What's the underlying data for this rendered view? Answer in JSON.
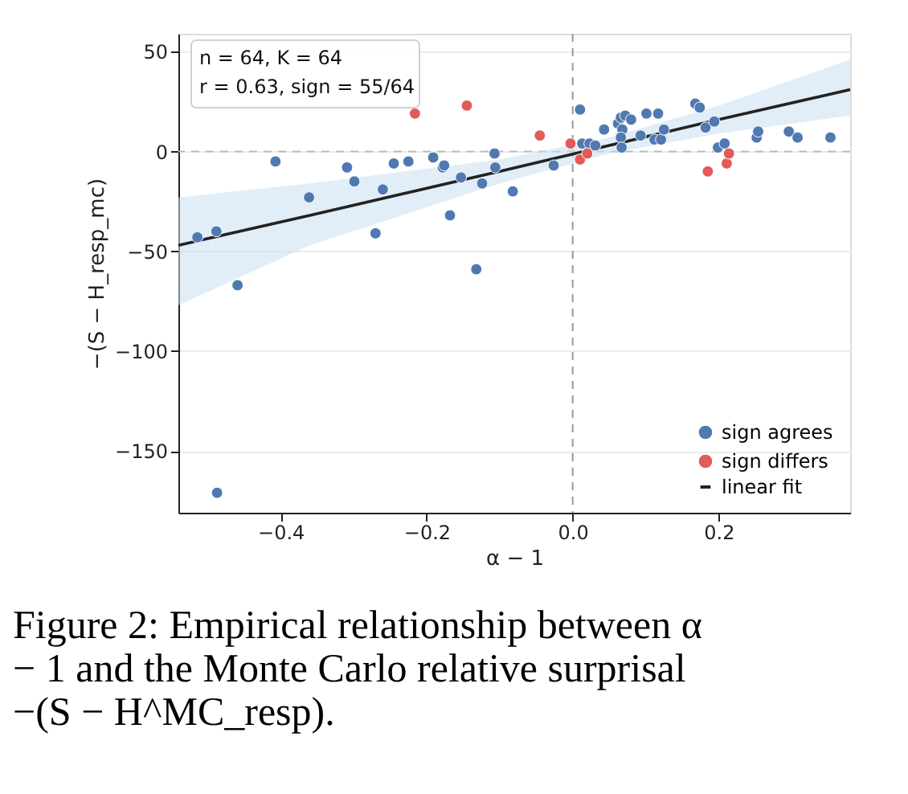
{
  "chart_data": {
    "type": "scatter",
    "xlabel": "α − 1",
    "ylabel": "−(S − H_resp_mc)",
    "xlim": [
      -0.54,
      0.38
    ],
    "ylim": [
      -181,
      59
    ],
    "xticks": [
      -0.4,
      -0.2,
      {
        "value": 0,
        "label": "0.0"
      },
      0.2
    ],
    "yticks": [
      -150,
      -100,
      -50,
      0,
      50
    ],
    "grid": "y",
    "legend": "bottom right",
    "marker": "circle",
    "ref_lines": [
      {
        "axis": "x",
        "value": 0,
        "color": "#999999",
        "line_style": "dashed"
      },
      {
        "axis": "y",
        "value": 0,
        "color": "#bbbbbb",
        "line_style": "dashed"
      }
    ],
    "annotations": [
      "n = 64, K = 64",
      "r = 0.63, sign  = 55/64",
      "Figure 2:  Empirical relationship between α − 1 and the Monte Carlo relative surprisal −(S − H^MC_resp)."
    ],
    "series": [
      {
        "name": "sign agrees",
        "color": "#5079b1",
        "x": [
          -0.514,
          -0.488,
          -0.459,
          -0.407,
          -0.361,
          -0.309,
          -0.299,
          -0.27,
          -0.26,
          -0.245,
          -0.225,
          -0.191,
          -0.178,
          -0.176,
          -0.168,
          -0.153,
          -0.132,
          -0.124,
          -0.107,
          -0.106,
          -0.082,
          -0.026,
          0.01,
          0.013,
          0.023,
          0.031,
          0.043,
          0.062,
          0.066,
          0.072,
          0.08,
          0.068,
          0.066,
          0.067,
          0.093,
          0.101,
          0.117,
          0.112,
          0.121,
          0.125,
          0.168,
          0.174,
          0.182,
          0.194,
          0.199,
          0.208,
          0.252,
          0.254,
          0.296,
          0.308,
          0.353,
          -0.487
        ],
        "values": [
          -43,
          -40,
          -67,
          -5,
          -23,
          -8,
          -15,
          -41,
          -19,
          -6,
          -5,
          -3,
          -8,
          -7,
          -32,
          -13,
          -59,
          -16,
          -1,
          -8,
          -20,
          -7,
          21,
          4,
          4,
          3,
          11,
          14,
          17,
          18,
          16,
          11,
          7,
          2,
          8,
          19,
          19,
          6,
          6,
          11,
          24,
          22,
          12,
          15,
          2,
          4,
          7,
          10,
          10,
          7,
          7,
          -171
        ]
      },
      {
        "name": "sign differs",
        "color": "#e35b58",
        "x": [
          -0.216,
          -0.145,
          -0.045,
          -0.003,
          0.01,
          0.02,
          0.185,
          0.211,
          0.214
        ],
        "values": [
          19,
          23,
          8,
          4,
          -4,
          -1,
          -10,
          -6,
          -1
        ]
      },
      {
        "name": "linear fit",
        "type": "line",
        "marker": "none",
        "color": "#222222",
        "x": [
          -0.54,
          -0.36,
          -0.1,
          0.05,
          0.2,
          0.38
        ],
        "values": [
          -47,
          -32,
          -10,
          3,
          16,
          31
        ],
        "lower": [
          -77,
          -47,
          -16,
          -1,
          9,
          18
        ],
        "upper": [
          -23,
          -16,
          -4,
          7,
          23,
          46
        ]
      }
    ]
  }
}
